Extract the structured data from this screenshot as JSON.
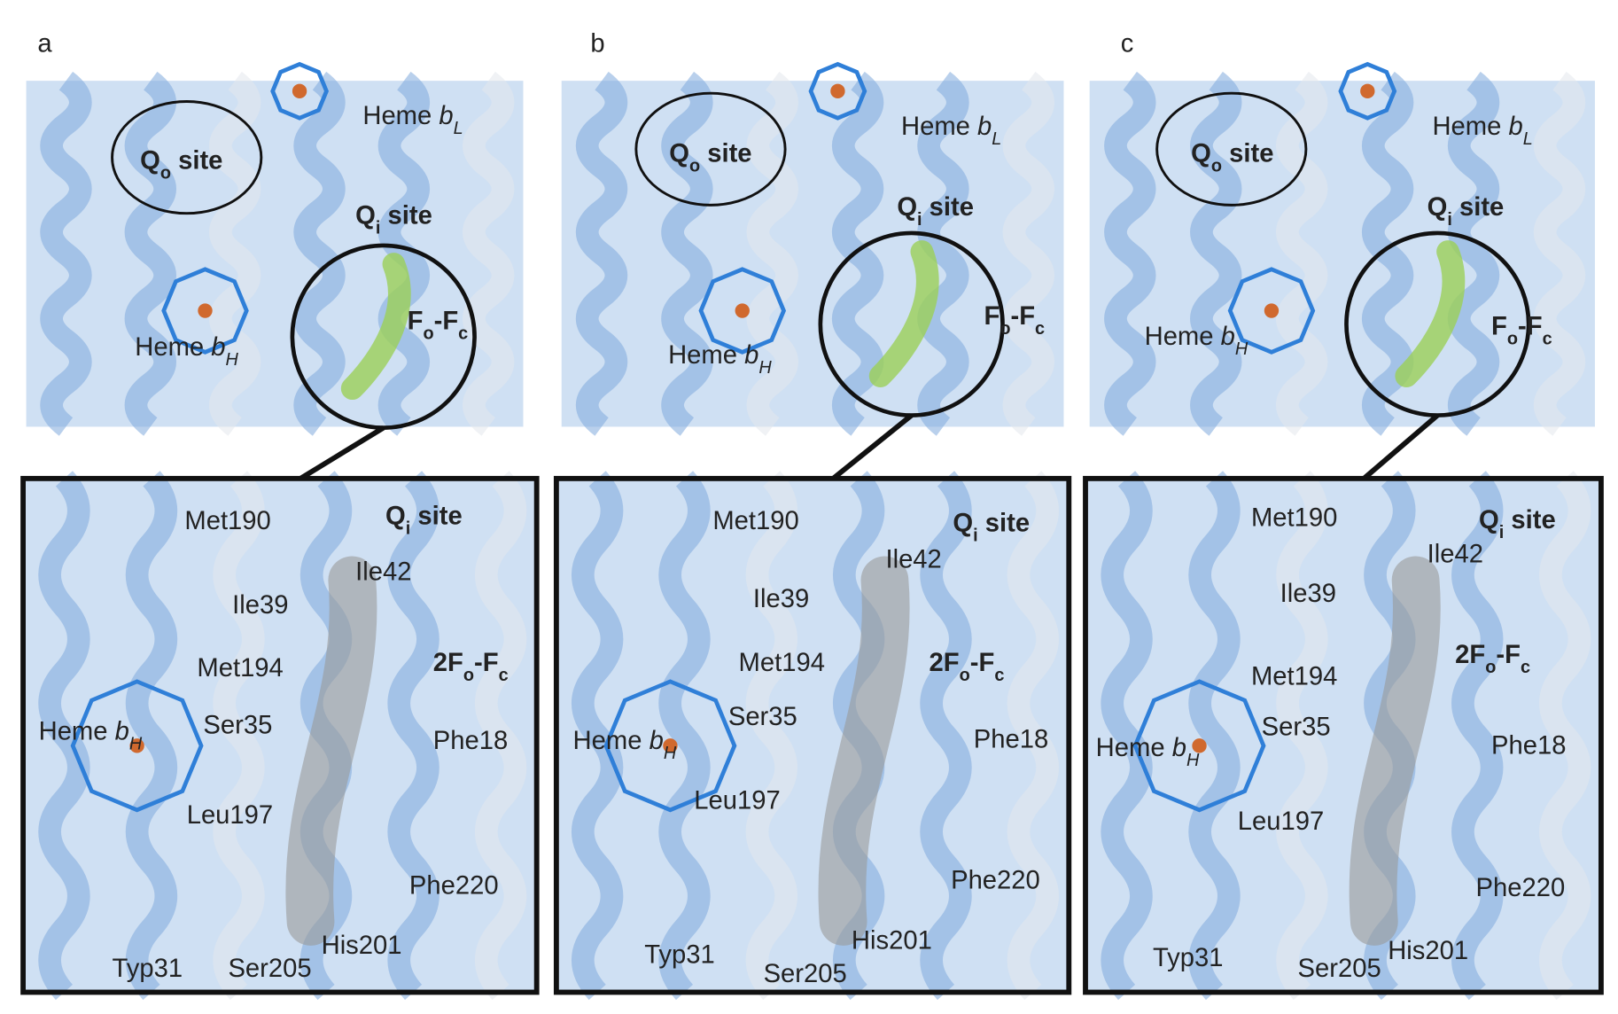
{
  "panels": [
    {
      "letter": "a",
      "top": [
        {
          "bold": true,
          "segments": [
            {
              "text": "Q"
            },
            {
              "text": "o",
              "sub": true
            },
            {
              "text": " site"
            }
          ]
        },
        {
          "segments": [
            {
              "text": "Heme "
            },
            {
              "text": "b",
              "italic": true
            },
            {
              "text": "L",
              "sub": true,
              "italic": true
            }
          ]
        },
        {
          "bold": true,
          "segments": [
            {
              "text": "Q"
            },
            {
              "text": "i",
              "sub": true
            },
            {
              "text": " site"
            }
          ]
        },
        {
          "bold": true,
          "color": "#4a8a1c",
          "segments": [
            {
              "text": "F"
            },
            {
              "text": "o",
              "sub": true
            },
            {
              "text": "-F"
            },
            {
              "text": "c",
              "sub": true
            }
          ]
        },
        {
          "segments": [
            {
              "text": "Heme "
            },
            {
              "text": "b",
              "italic": true
            },
            {
              "text": "H",
              "sub": true,
              "italic": true
            }
          ]
        }
      ],
      "bottom": [
        {
          "segments": [
            {
              "text": "Met190"
            }
          ]
        },
        {
          "bold": true,
          "segments": [
            {
              "text": "Q"
            },
            {
              "text": "i",
              "sub": true
            },
            {
              "text": " site"
            }
          ]
        },
        {
          "segments": [
            {
              "text": "Ile42"
            }
          ]
        },
        {
          "segments": [
            {
              "text": "Ile39"
            }
          ]
        },
        {
          "segments": [
            {
              "text": "Met194"
            }
          ]
        },
        {
          "bold": true,
          "color": "#555555",
          "segments": [
            {
              "text": "2F"
            },
            {
              "text": "o",
              "sub": true
            },
            {
              "text": "-F"
            },
            {
              "text": "c",
              "sub": true
            }
          ]
        },
        {
          "segments": [
            {
              "text": "Ser35"
            }
          ]
        },
        {
          "segments": [
            {
              "text": "Heme "
            },
            {
              "text": "b",
              "italic": true
            },
            {
              "text": "H",
              "sub": true,
              "italic": true
            }
          ]
        },
        {
          "segments": [
            {
              "text": "Phe18"
            }
          ]
        },
        {
          "segments": [
            {
              "text": "Leu197"
            }
          ]
        },
        {
          "segments": [
            {
              "text": "Phe220"
            }
          ]
        },
        {
          "segments": [
            {
              "text": "His201"
            }
          ]
        },
        {
          "segments": [
            {
              "text": "Typ31"
            }
          ]
        },
        {
          "segments": [
            {
              "text": "Ser205"
            }
          ]
        }
      ]
    },
    {
      "letter": "b",
      "top": [
        {
          "bold": true,
          "segments": [
            {
              "text": "Q"
            },
            {
              "text": "o",
              "sub": true
            },
            {
              "text": " site"
            }
          ]
        },
        {
          "segments": [
            {
              "text": "Heme "
            },
            {
              "text": "b",
              "italic": true
            },
            {
              "text": "L",
              "sub": true,
              "italic": true
            }
          ]
        },
        {
          "bold": true,
          "segments": [
            {
              "text": "Q"
            },
            {
              "text": "i",
              "sub": true
            },
            {
              "text": " site"
            }
          ]
        },
        {
          "bold": true,
          "color": "#4a8a1c",
          "segments": [
            {
              "text": "F"
            },
            {
              "text": "o",
              "sub": true
            },
            {
              "text": "-F"
            },
            {
              "text": "c",
              "sub": true
            }
          ]
        },
        {
          "segments": [
            {
              "text": "Heme "
            },
            {
              "text": "b",
              "italic": true
            },
            {
              "text": "H",
              "sub": true,
              "italic": true
            }
          ]
        }
      ],
      "bottom": [
        {
          "segments": [
            {
              "text": "Met190"
            }
          ]
        },
        {
          "bold": true,
          "segments": [
            {
              "text": "Q"
            },
            {
              "text": "i",
              "sub": true
            },
            {
              "text": " site"
            }
          ]
        },
        {
          "segments": [
            {
              "text": "Ile42"
            }
          ]
        },
        {
          "segments": [
            {
              "text": "Ile39"
            }
          ]
        },
        {
          "segments": [
            {
              "text": "Met194"
            }
          ]
        },
        {
          "bold": true,
          "color": "#555555",
          "segments": [
            {
              "text": "2F"
            },
            {
              "text": "o",
              "sub": true
            },
            {
              "text": "-F"
            },
            {
              "text": "c",
              "sub": true
            }
          ]
        },
        {
          "segments": [
            {
              "text": "Ser35"
            }
          ]
        },
        {
          "segments": [
            {
              "text": "Heme "
            },
            {
              "text": "b",
              "italic": true
            },
            {
              "text": "H",
              "sub": true,
              "italic": true
            }
          ]
        },
        {
          "segments": [
            {
              "text": "Phe18"
            }
          ]
        },
        {
          "segments": [
            {
              "text": "Leu197"
            }
          ]
        },
        {
          "segments": [
            {
              "text": "Phe220"
            }
          ]
        },
        {
          "segments": [
            {
              "text": "His201"
            }
          ]
        },
        {
          "segments": [
            {
              "text": "Typ31"
            }
          ]
        },
        {
          "segments": [
            {
              "text": "Ser205"
            }
          ]
        }
      ]
    },
    {
      "letter": "c",
      "top": [
        {
          "bold": true,
          "segments": [
            {
              "text": "Q"
            },
            {
              "text": "o",
              "sub": true
            },
            {
              "text": " site"
            }
          ]
        },
        {
          "segments": [
            {
              "text": "Heme "
            },
            {
              "text": "b",
              "italic": true
            },
            {
              "text": "L",
              "sub": true,
              "italic": true
            }
          ]
        },
        {
          "bold": true,
          "segments": [
            {
              "text": "Q"
            },
            {
              "text": "i",
              "sub": true
            },
            {
              "text": " site"
            }
          ]
        },
        {
          "bold": true,
          "color": "#4a8a1c",
          "segments": [
            {
              "text": "F"
            },
            {
              "text": "o",
              "sub": true
            },
            {
              "text": "-F"
            },
            {
              "text": "c",
              "sub": true
            }
          ]
        },
        {
          "segments": [
            {
              "text": "Heme "
            },
            {
              "text": "b",
              "italic": true
            },
            {
              "text": "H",
              "sub": true,
              "italic": true
            }
          ]
        }
      ],
      "bottom": [
        {
          "segments": [
            {
              "text": "Met190"
            }
          ]
        },
        {
          "bold": true,
          "segments": [
            {
              "text": "Q"
            },
            {
              "text": "i",
              "sub": true
            },
            {
              "text": " site"
            }
          ]
        },
        {
          "segments": [
            {
              "text": "Ile42"
            }
          ]
        },
        {
          "segments": [
            {
              "text": "Ile39"
            }
          ]
        },
        {
          "segments": [
            {
              "text": "Met194"
            }
          ]
        },
        {
          "bold": true,
          "color": "#555555",
          "segments": [
            {
              "text": "2F"
            },
            {
              "text": "o",
              "sub": true
            },
            {
              "text": "-F"
            },
            {
              "text": "c",
              "sub": true
            }
          ]
        },
        {
          "segments": [
            {
              "text": "Ser35"
            }
          ]
        },
        {
          "segments": [
            {
              "text": "Heme "
            },
            {
              "text": "b",
              "italic": true
            },
            {
              "text": "H",
              "sub": true,
              "italic": true
            }
          ]
        },
        {
          "segments": [
            {
              "text": "Phe18"
            }
          ]
        },
        {
          "segments": [
            {
              "text": "Leu197"
            }
          ]
        },
        {
          "segments": [
            {
              "text": "Phe220"
            }
          ]
        },
        {
          "segments": [
            {
              "text": "His201"
            }
          ]
        },
        {
          "segments": [
            {
              "text": "Typ31"
            }
          ]
        },
        {
          "segments": [
            {
              "text": "Ser205"
            }
          ]
        }
      ]
    }
  ]
}
